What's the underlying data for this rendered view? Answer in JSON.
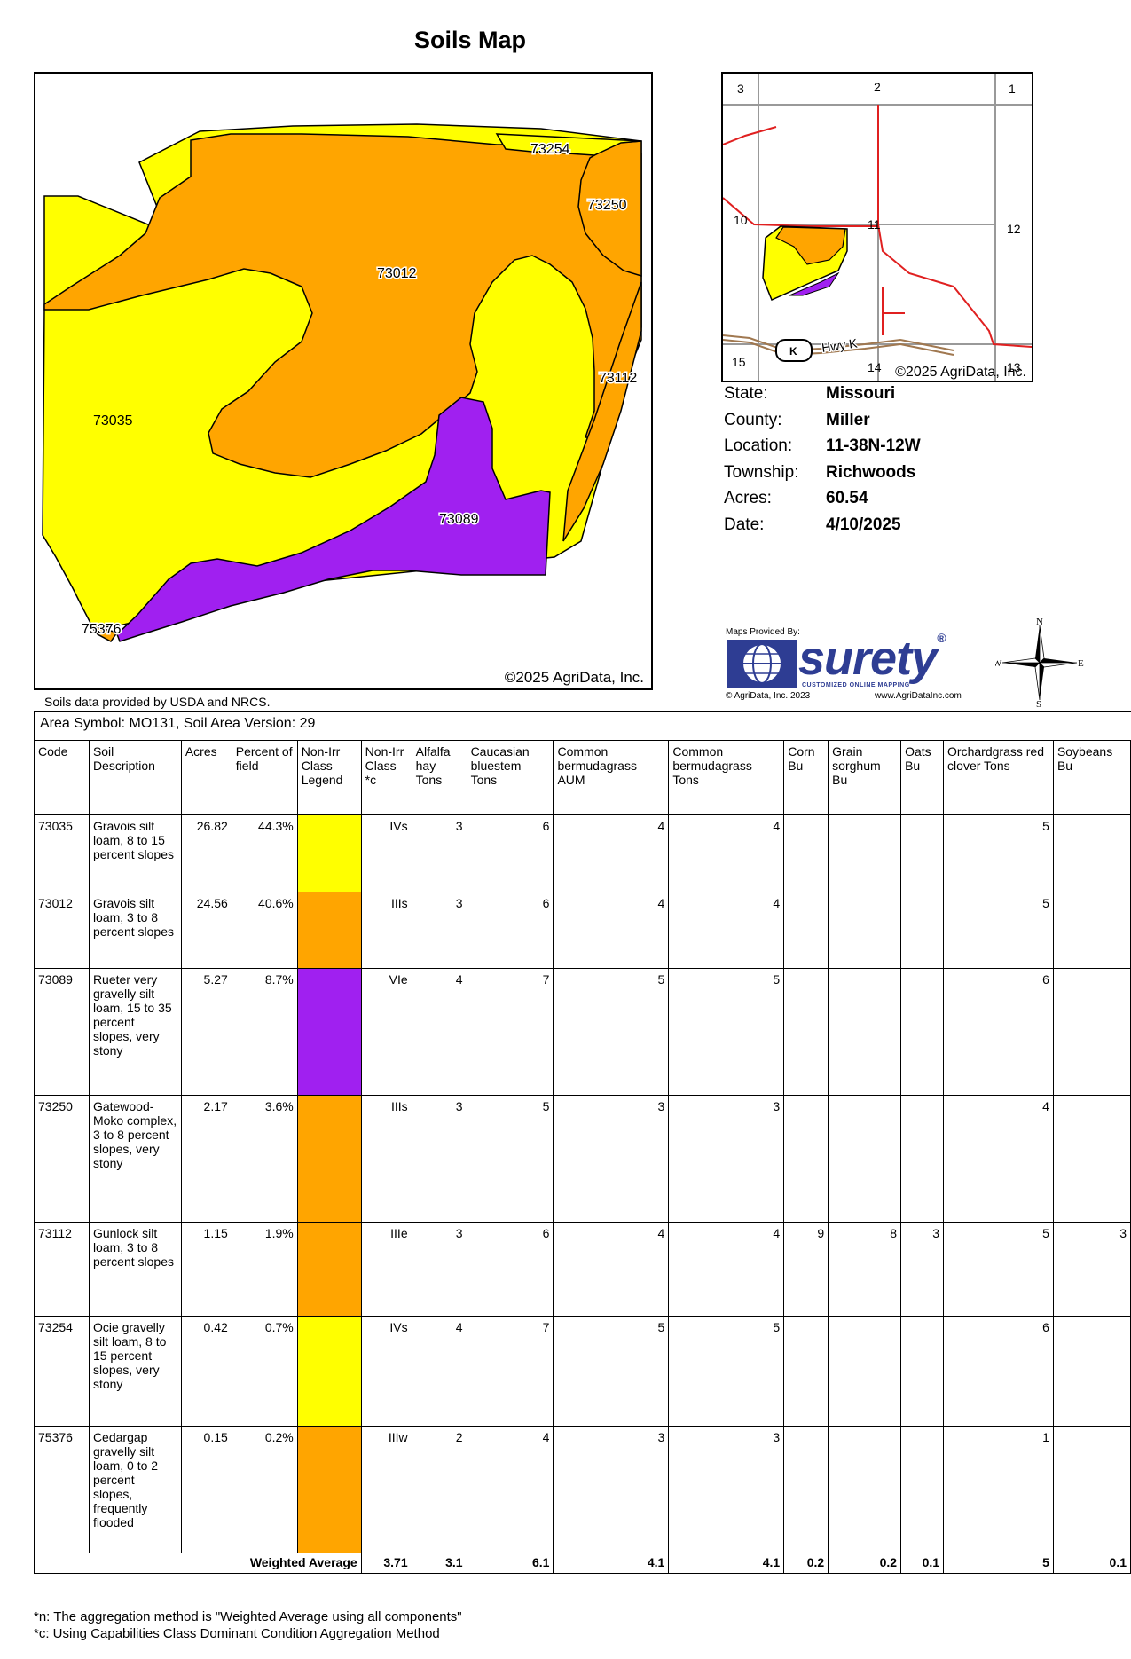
{
  "title": "Soils Map",
  "main_map": {
    "copyright": "©2025 AgriData, Inc.",
    "soil_labels": [
      "73254",
      "73250",
      "73012",
      "73035",
      "73112",
      "73089",
      "75376"
    ]
  },
  "data_source": "Soils data provided by USDA and NRCS.",
  "locator_map": {
    "section_numbers": [
      "3",
      "2",
      "1",
      "10",
      "11",
      "12",
      "15",
      "14",
      "13"
    ],
    "road_label": "Hwy K",
    "shield": "K",
    "copyright": "©2025 AgriData, Inc."
  },
  "info": {
    "rows": [
      {
        "label": "State:",
        "value": "Missouri"
      },
      {
        "label": "County:",
        "value": "Miller"
      },
      {
        "label": "Location:",
        "value": "11-38N-12W"
      },
      {
        "label": "Township:",
        "value": "Richwoods"
      },
      {
        "label": "Acres:",
        "value": "60.54"
      },
      {
        "label": "Date:",
        "value": "4/10/2025"
      }
    ]
  },
  "logo": {
    "maps_provided": "Maps Provided By:",
    "brand": "surety",
    "tagline": "CUSTOMIZED ONLINE MAPPING",
    "copyright": "© AgriData, Inc. 2023",
    "website": "www.AgriDataInc.com"
  },
  "compass": {
    "n": "N",
    "s": "S",
    "e": "E",
    "w": "W"
  },
  "colors": {
    "yellow": "#ffff00",
    "orange": "#ffa500",
    "purple": "#a020f0"
  },
  "table": {
    "area_symbol": "Area Symbol: MO131, Soil Area Version: 29",
    "headers": [
      "Code",
      "Soil Description",
      "Acres",
      "Percent of field",
      "Non-Irr Class Legend",
      "Non-Irr Class *c",
      "Alfalfa hay Tons",
      "Caucasian bluestem Tons",
      "Common bermudagrass AUM",
      "Common bermudagrass Tons",
      "Corn Bu",
      "Grain sorghum Bu",
      "Oats Bu",
      "Orchardgrass red clover Tons",
      "Soybeans Bu"
    ],
    "rows": [
      {
        "code": "73035",
        "desc": "Gravois silt loam, 8 to 15 percent slopes",
        "acres": "26.82",
        "pct": "44.3%",
        "legend": "#ffff00",
        "cls": "IVs",
        "alfalfa": "3",
        "caucasian": "6",
        "bermuda_aum": "4",
        "bermuda_tons": "4",
        "corn": "",
        "sorghum": "",
        "oats": "",
        "orchard": "5",
        "soy": ""
      },
      {
        "code": "73012",
        "desc": "Gravois silt loam, 3 to 8 percent slopes",
        "acres": "24.56",
        "pct": "40.6%",
        "legend": "#ffa500",
        "cls": "IIIs",
        "alfalfa": "3",
        "caucasian": "6",
        "bermuda_aum": "4",
        "bermuda_tons": "4",
        "corn": "",
        "sorghum": "",
        "oats": "",
        "orchard": "5",
        "soy": ""
      },
      {
        "code": "73089",
        "desc": "Rueter very gravelly silt loam, 15 to 35 percent slopes, very stony",
        "acres": "5.27",
        "pct": "8.7%",
        "legend": "#a020f0",
        "cls": "VIe",
        "alfalfa": "4",
        "caucasian": "7",
        "bermuda_aum": "5",
        "bermuda_tons": "5",
        "corn": "",
        "sorghum": "",
        "oats": "",
        "orchard": "6",
        "soy": ""
      },
      {
        "code": "73250",
        "desc": "Gatewood-Moko complex, 3 to 8 percent slopes, very stony",
        "acres": "2.17",
        "pct": "3.6%",
        "legend": "#ffa500",
        "cls": "IIIs",
        "alfalfa": "3",
        "caucasian": "5",
        "bermuda_aum": "3",
        "bermuda_tons": "3",
        "corn": "",
        "sorghum": "",
        "oats": "",
        "orchard": "4",
        "soy": ""
      },
      {
        "code": "73112",
        "desc": "Gunlock silt loam, 3 to 8 percent slopes",
        "acres": "1.15",
        "pct": "1.9%",
        "legend": "#ffa500",
        "cls": "IIIe",
        "alfalfa": "3",
        "caucasian": "6",
        "bermuda_aum": "4",
        "bermuda_tons": "4",
        "corn": "9",
        "sorghum": "8",
        "oats": "3",
        "orchard": "5",
        "soy": "3"
      },
      {
        "code": "73254",
        "desc": "Ocie gravelly silt loam, 8 to 15 percent slopes, very stony",
        "acres": "0.42",
        "pct": "0.7%",
        "legend": "#ffff00",
        "cls": "IVs",
        "alfalfa": "4",
        "caucasian": "7",
        "bermuda_aum": "5",
        "bermuda_tons": "5",
        "corn": "",
        "sorghum": "",
        "oats": "",
        "orchard": "6",
        "soy": ""
      },
      {
        "code": "75376",
        "desc": "Cedargap gravelly silt loam, 0 to 2 percent slopes, frequently flooded",
        "acres": "0.15",
        "pct": "0.2%",
        "legend": "#ffa500",
        "cls": "IIIw",
        "alfalfa": "2",
        "caucasian": "4",
        "bermuda_aum": "3",
        "bermuda_tons": "3",
        "corn": "",
        "sorghum": "",
        "oats": "",
        "orchard": "1",
        "soy": ""
      }
    ],
    "total": {
      "label": "Weighted Average",
      "cls": "3.71",
      "alfalfa": "3.1",
      "caucasian": "6.1",
      "bermuda_aum": "4.1",
      "bermuda_tons": "4.1",
      "corn": "0.2",
      "sorghum": "0.2",
      "oats": "0.1",
      "orchard": "5",
      "soy": "0.1"
    }
  },
  "footnotes": [
    "*n: The aggregation method is \"Weighted Average using all components\"",
    "*c: Using Capabilities Class Dominant Condition Aggregation Method"
  ]
}
